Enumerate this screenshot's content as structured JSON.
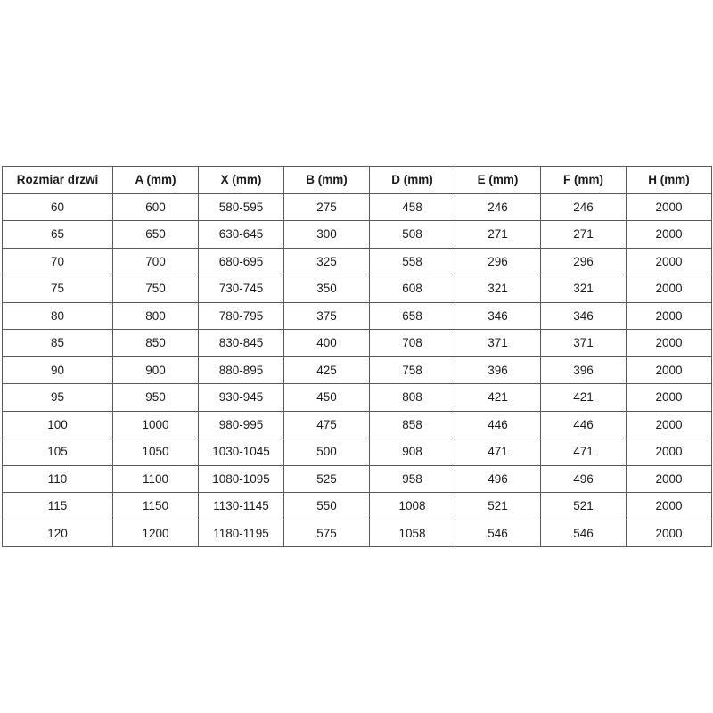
{
  "table": {
    "columns": [
      "Rozmiar drzwi",
      "A (mm)",
      "X (mm)",
      "B (mm)",
      "D (mm)",
      "E (mm)",
      "F (mm)",
      "H (mm)"
    ],
    "rows": [
      [
        "60",
        "600",
        "580-595",
        "275",
        "458",
        "246",
        "246",
        "2000"
      ],
      [
        "65",
        "650",
        "630-645",
        "300",
        "508",
        "271",
        "271",
        "2000"
      ],
      [
        "70",
        "700",
        "680-695",
        "325",
        "558",
        "296",
        "296",
        "2000"
      ],
      [
        "75",
        "750",
        "730-745",
        "350",
        "608",
        "321",
        "321",
        "2000"
      ],
      [
        "80",
        "800",
        "780-795",
        "375",
        "658",
        "346",
        "346",
        "2000"
      ],
      [
        "85",
        "850",
        "830-845",
        "400",
        "708",
        "371",
        "371",
        "2000"
      ],
      [
        "90",
        "900",
        "880-895",
        "425",
        "758",
        "396",
        "396",
        "2000"
      ],
      [
        "95",
        "950",
        "930-945",
        "450",
        "808",
        "421",
        "421",
        "2000"
      ],
      [
        "100",
        "1000",
        "980-995",
        "475",
        "858",
        "446",
        "446",
        "2000"
      ],
      [
        "105",
        "1050",
        "1030-1045",
        "500",
        "908",
        "471",
        "471",
        "2000"
      ],
      [
        "110",
        "1100",
        "1080-1095",
        "525",
        "958",
        "496",
        "496",
        "2000"
      ],
      [
        "115",
        "1150",
        "1130-1145",
        "550",
        "1008",
        "521",
        "521",
        "2000"
      ],
      [
        "120",
        "1200",
        "1180-1195",
        "575",
        "1058",
        "546",
        "546",
        "2000"
      ]
    ],
    "border_color": "#595959",
    "text_color": "#1a1a1a",
    "background_color": "#ffffff"
  },
  "chart_data": {
    "type": "table",
    "title": "",
    "columns": [
      "Rozmiar drzwi",
      "A (mm)",
      "X (mm)",
      "B (mm)",
      "D (mm)",
      "E (mm)",
      "F (mm)",
      "H (mm)"
    ],
    "rows": [
      [
        "60",
        "600",
        "580-595",
        "275",
        "458",
        "246",
        "246",
        "2000"
      ],
      [
        "65",
        "650",
        "630-645",
        "300",
        "508",
        "271",
        "271",
        "2000"
      ],
      [
        "70",
        "700",
        "680-695",
        "325",
        "558",
        "296",
        "296",
        "2000"
      ],
      [
        "75",
        "750",
        "730-745",
        "350",
        "608",
        "321",
        "321",
        "2000"
      ],
      [
        "80",
        "800",
        "780-795",
        "375",
        "658",
        "346",
        "346",
        "2000"
      ],
      [
        "85",
        "850",
        "830-845",
        "400",
        "708",
        "371",
        "371",
        "2000"
      ],
      [
        "90",
        "900",
        "880-895",
        "425",
        "758",
        "396",
        "396",
        "2000"
      ],
      [
        "95",
        "950",
        "930-945",
        "450",
        "808",
        "421",
        "421",
        "2000"
      ],
      [
        "100",
        "1000",
        "980-995",
        "475",
        "858",
        "446",
        "446",
        "2000"
      ],
      [
        "105",
        "1050",
        "1030-1045",
        "500",
        "908",
        "471",
        "471",
        "2000"
      ],
      [
        "110",
        "1100",
        "1080-1095",
        "525",
        "958",
        "496",
        "496",
        "2000"
      ],
      [
        "115",
        "1150",
        "1130-1145",
        "550",
        "1008",
        "521",
        "521",
        "2000"
      ],
      [
        "120",
        "1200",
        "1180-1195",
        "575",
        "1058",
        "546",
        "546",
        "2000"
      ]
    ]
  }
}
